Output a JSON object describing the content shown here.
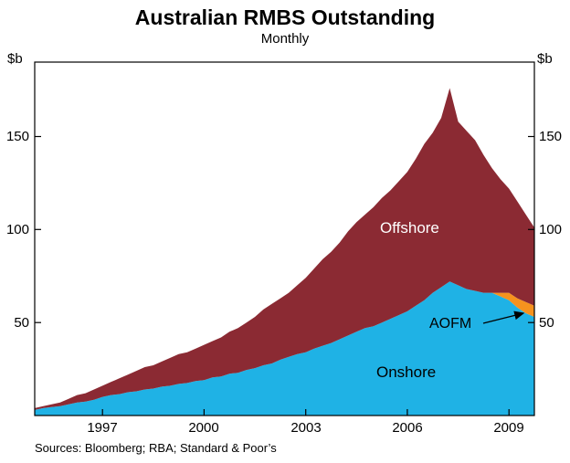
{
  "chart_data": {
    "type": "area",
    "stacked": true,
    "title": "Australian RMBS Outstanding",
    "subtitle": "Monthly",
    "source": "Sources: Bloomberg; RBA; Standard & Poor’s",
    "y_unit_left": "$b",
    "y_unit_right": "$b",
    "xlim": [
      1995,
      2009.75
    ],
    "ylim": [
      0,
      190
    ],
    "x_start": 1995,
    "x_step": 0.25,
    "x_ticks": [
      1997,
      2000,
      2003,
      2006,
      2009
    ],
    "y_ticks": [
      50,
      100,
      150
    ],
    "grid": false,
    "legend": "in-plot labels",
    "labels": {
      "offshore": "Offshore",
      "onshore": "Onshore",
      "aofm": "AOFM"
    },
    "series": [
      {
        "name": "Onshore",
        "color": "#1fb2e5",
        "values": [
          3,
          4,
          4.5,
          5,
          6,
          7,
          7.5,
          8.5,
          10,
          11,
          11.5,
          12.5,
          13,
          14,
          14.5,
          15.5,
          16,
          17,
          17.5,
          18.5,
          19,
          20.5,
          21,
          22.5,
          23,
          24.5,
          25.5,
          27,
          28,
          30,
          31.5,
          33,
          34,
          36,
          37.5,
          39,
          41,
          43,
          45,
          47,
          48,
          50,
          52,
          54,
          56,
          59,
          62,
          66,
          69,
          72,
          70,
          68,
          67,
          66,
          66,
          64,
          62,
          58,
          55,
          53
        ]
      },
      {
        "name": "AOFM",
        "color": "#f6921e",
        "values": [
          0,
          0,
          0,
          0,
          0,
          0,
          0,
          0,
          0,
          0,
          0,
          0,
          0,
          0,
          0,
          0,
          0,
          0,
          0,
          0,
          0,
          0,
          0,
          0,
          0,
          0,
          0,
          0,
          0,
          0,
          0,
          0,
          0,
          0,
          0,
          0,
          0,
          0,
          0,
          0,
          0,
          0,
          0,
          0,
          0,
          0,
          0,
          0,
          0,
          0,
          0,
          0,
          0,
          0,
          0,
          2,
          4,
          5,
          6,
          6
        ]
      },
      {
        "name": "Offshore",
        "color": "#8b2a33",
        "values": [
          1,
          1,
          1.5,
          2,
          3,
          4,
          4.5,
          5.5,
          6,
          7,
          8.5,
          9.5,
          11,
          12,
          12.5,
          13.5,
          15,
          16,
          16.5,
          17.5,
          19,
          19.5,
          21,
          22.5,
          24,
          25.5,
          27.5,
          30,
          32,
          33,
          34.5,
          37,
          40,
          43,
          46.5,
          49,
          52,
          56,
          59,
          61,
          64,
          67,
          69,
          72,
          75,
          79,
          84,
          86,
          91,
          104,
          88,
          85,
          81,
          74,
          67,
          61,
          56,
          52,
          47,
          42
        ]
      }
    ]
  }
}
